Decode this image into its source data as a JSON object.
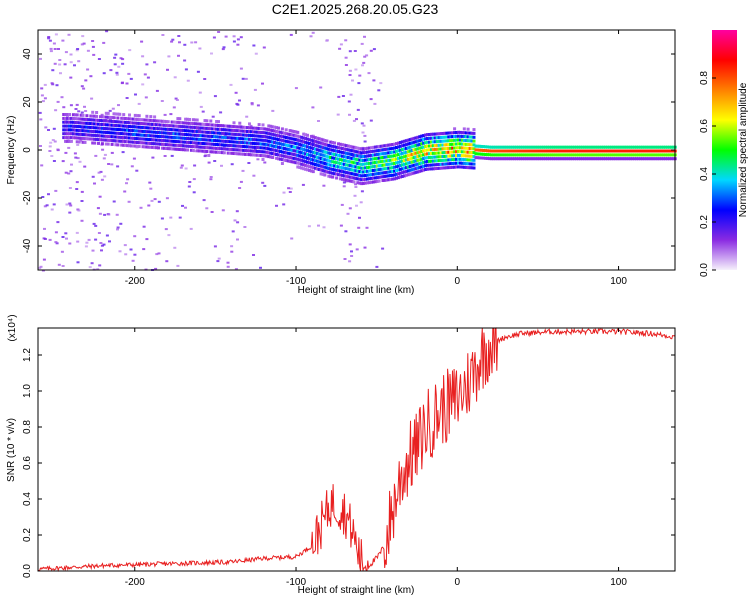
{
  "title": "C2E1.2025.268.20.05.G23",
  "chart_data": [
    {
      "type": "heatmap",
      "name": "spectrogram",
      "xlabel": "Height of straight line (km)",
      "ylabel": "Frequency (Hz)",
      "xlim": [
        -260,
        135
      ],
      "ylim": [
        -50,
        50
      ],
      "xticks": [
        -200,
        -100,
        0,
        100
      ],
      "yticks": [
        -40,
        -20,
        0,
        20,
        40
      ],
      "colorbar": {
        "label": "Normalized spectral amplitude",
        "range": [
          0,
          1
        ],
        "ticks": [
          "0.0",
          "0.2",
          "0.4",
          "0.6",
          "0.8"
        ],
        "colors": [
          "#f6f1fb",
          "#8a2be2",
          "#0000ff",
          "#00d8ff",
          "#00ff00",
          "#ffff00",
          "#ff8000",
          "#ff0000",
          "#ff00a0"
        ]
      },
      "ridge": {
        "x": [
          -240,
          -200,
          -160,
          -120,
          -100,
          -80,
          -60,
          -40,
          -20,
          0,
          20,
          60,
          100,
          135
        ],
        "y": [
          10,
          8,
          6,
          4,
          1,
          -3,
          -6,
          -4,
          0,
          1,
          0,
          0,
          0,
          0
        ],
        "amplitude": [
          0.25,
          0.3,
          0.3,
          0.32,
          0.35,
          0.45,
          0.5,
          0.6,
          0.75,
          0.8,
          0.85,
          0.9,
          0.9,
          0.9
        ]
      }
    },
    {
      "type": "line",
      "name": "snr",
      "xlabel": "Height of straight line (km)",
      "ylabel": "SNR (10 * v/v)",
      "scale_note": "(x10⁴)",
      "xlim": [
        -260,
        135
      ],
      "ylim": [
        0,
        1.35
      ],
      "xticks": [
        -200,
        -100,
        0,
        100
      ],
      "yticks": [
        0.0,
        0.2,
        0.4,
        0.6,
        0.8,
        1.0,
        1.2
      ],
      "color": "#e82020",
      "series": [
        {
          "name": "SNR",
          "x": [
            -260,
            -220,
            -180,
            -140,
            -120,
            -100,
            -90,
            -82,
            -78,
            -74,
            -70,
            -65,
            -60,
            -55,
            -50,
            -45,
            -40,
            -35,
            -30,
            -25,
            -20,
            -15,
            -10,
            -5,
            0,
            5,
            10,
            15,
            20,
            30,
            40,
            60,
            80,
            100,
            120,
            135
          ],
          "y": [
            0.01,
            0.03,
            0.04,
            0.05,
            0.07,
            0.08,
            0.14,
            0.3,
            0.38,
            0.36,
            0.33,
            0.22,
            0.06,
            0.03,
            0.07,
            0.14,
            0.34,
            0.52,
            0.62,
            0.68,
            0.8,
            0.84,
            0.9,
            0.92,
            0.96,
            1.02,
            1.1,
            1.2,
            1.26,
            1.3,
            1.32,
            1.33,
            1.33,
            1.33,
            1.32,
            1.3
          ]
        }
      ]
    }
  ]
}
